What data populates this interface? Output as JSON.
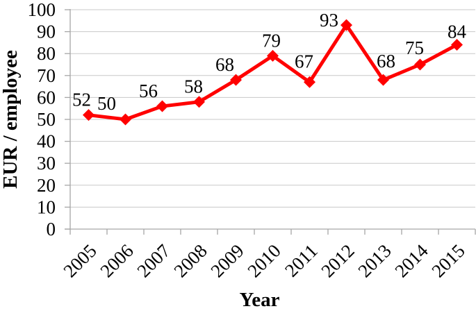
{
  "chart_data": {
    "type": "line",
    "title": "",
    "categories": [
      "2005",
      "2006",
      "2007",
      "2008",
      "2009",
      "2010",
      "2011",
      "2012",
      "2013",
      "2014",
      "2015"
    ],
    "series": [
      {
        "name": "EUR / employee",
        "values": [
          52,
          50,
          56,
          58,
          68,
          79,
          67,
          93,
          68,
          75,
          84
        ],
        "color": "#FF0000",
        "marker": "diamond"
      }
    ],
    "data_labels_shown": true,
    "xlabel": "Year",
    "ylabel": "EUR / employee",
    "ylim": [
      0,
      100
    ],
    "ytick_step": 10,
    "x_tick_rotation": -45,
    "grid": true,
    "legend_position": "none",
    "colors": {
      "series": "#FF0000",
      "gridline": "#C8C8C8",
      "axis": "#A6A6A6",
      "text": "#000000",
      "background": "#FFFFFF"
    }
  }
}
